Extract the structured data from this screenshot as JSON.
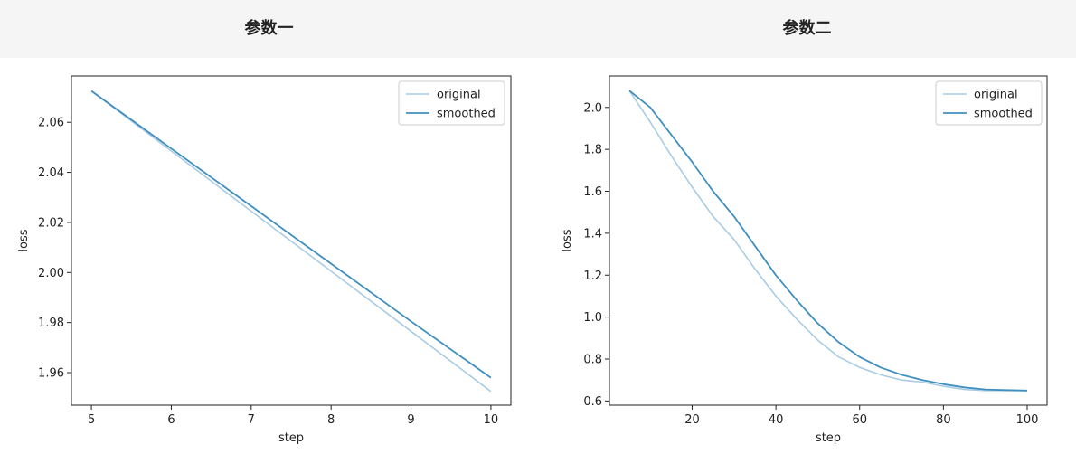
{
  "header": {
    "col1_title": "参数一",
    "col2_title": "参数二"
  },
  "colors": {
    "original": "#a9cce3",
    "smoothed": "#3f8fc0",
    "header_bg": "#f5f5f5"
  },
  "chart_data": [
    {
      "type": "line",
      "title": "",
      "xlabel": "step",
      "ylabel": "loss",
      "xlim": [
        4.75,
        10.25
      ],
      "ylim": [
        1.947,
        2.0785
      ],
      "xticks": [
        5,
        6,
        7,
        8,
        9,
        10
      ],
      "yticks": [
        1.96,
        1.98,
        2.0,
        2.02,
        2.04,
        2.06
      ],
      "ytick_labels": [
        "1.96",
        "1.98",
        "2.00",
        "2.02",
        "2.04",
        "2.06"
      ],
      "legend": {
        "placement": "top-right",
        "entries": [
          "original",
          "smoothed"
        ]
      },
      "series": [
        {
          "name": "original",
          "x": [
            5,
            6,
            7,
            8,
            9,
            10
          ],
          "y": [
            2.0725,
            2.0485,
            2.0245,
            2.0005,
            1.9765,
            1.9525
          ]
        },
        {
          "name": "smoothed",
          "x": [
            5,
            6,
            7,
            8,
            9,
            10
          ],
          "y": [
            2.0725,
            2.0495,
            2.0265,
            2.0035,
            1.9805,
            1.958
          ]
        }
      ]
    },
    {
      "type": "line",
      "title": "",
      "xlabel": "step",
      "ylabel": "loss",
      "xlim": [
        0.25,
        104.75
      ],
      "ylim": [
        0.58,
        2.15
      ],
      "xticks": [
        20,
        40,
        60,
        80,
        100
      ],
      "yticks": [
        0.6,
        0.8,
        1.0,
        1.2,
        1.4,
        1.6,
        1.8,
        2.0
      ],
      "ytick_labels": [
        "0.6",
        "0.8",
        "1.0",
        "1.2",
        "1.4",
        "1.6",
        "1.8",
        "2.0"
      ],
      "legend": {
        "placement": "top-right",
        "entries": [
          "original",
          "smoothed"
        ]
      },
      "series": [
        {
          "name": "original",
          "x": [
            5,
            10,
            15,
            20,
            25,
            30,
            35,
            40,
            45,
            50,
            55,
            60,
            65,
            70,
            75,
            80,
            85,
            90,
            95,
            100
          ],
          "y": [
            2.08,
            1.93,
            1.77,
            1.62,
            1.48,
            1.37,
            1.23,
            1.1,
            0.99,
            0.89,
            0.81,
            0.76,
            0.725,
            0.7,
            0.69,
            0.67,
            0.655,
            0.65,
            0.65,
            0.65
          ]
        },
        {
          "name": "smoothed",
          "x": [
            5,
            10,
            15,
            20,
            25,
            30,
            35,
            40,
            45,
            50,
            55,
            60,
            65,
            70,
            75,
            80,
            85,
            90,
            95,
            100
          ],
          "y": [
            2.08,
            2.0,
            1.87,
            1.74,
            1.6,
            1.48,
            1.34,
            1.2,
            1.08,
            0.97,
            0.88,
            0.81,
            0.76,
            0.725,
            0.7,
            0.68,
            0.665,
            0.655,
            0.652,
            0.65
          ]
        }
      ]
    }
  ]
}
